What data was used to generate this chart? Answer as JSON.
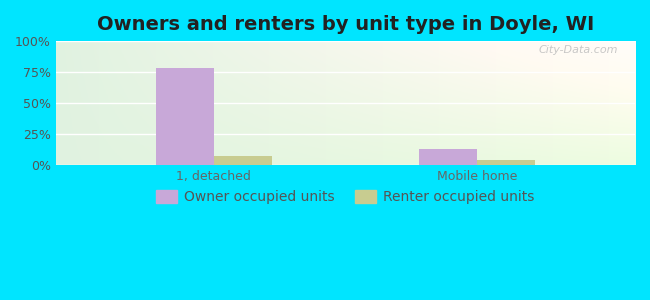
{
  "title": "Owners and renters by unit type in Doyle, WI",
  "categories": [
    "1, detached",
    "Mobile home"
  ],
  "owner_values": [
    78.0,
    13.0
  ],
  "renter_values": [
    7.0,
    4.0
  ],
  "owner_color": "#c8a8d8",
  "renter_color": "#c8cc90",
  "outer_bg": "#00e5ff",
  "ylim": [
    0,
    100
  ],
  "yticks": [
    0,
    25,
    50,
    75,
    100
  ],
  "ytick_labels": [
    "0%",
    "25%",
    "50%",
    "75%",
    "100%"
  ],
  "legend_owner": "Owner occupied units",
  "legend_renter": "Renter occupied units",
  "title_fontsize": 14,
  "tick_fontsize": 9,
  "legend_fontsize": 10,
  "bar_width": 0.22,
  "watermark": "City-Data.com"
}
